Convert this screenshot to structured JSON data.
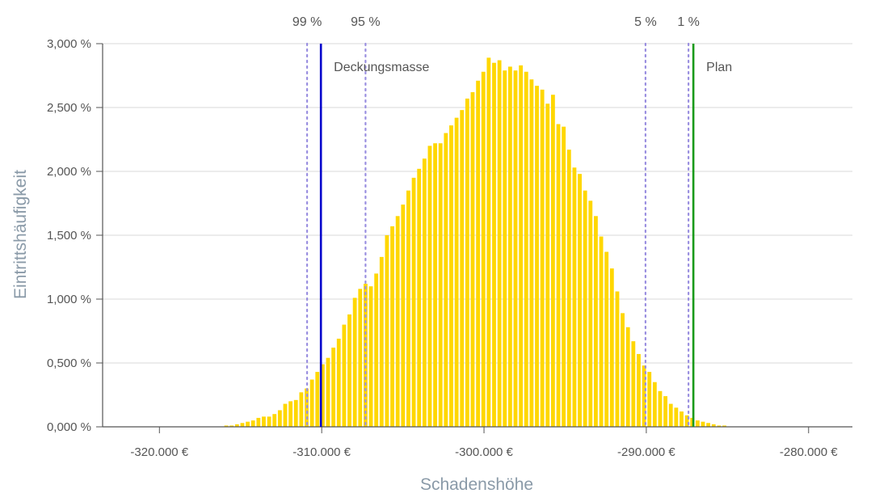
{
  "chart_data": {
    "type": "bar",
    "xlabel": "Schadenshöhe",
    "ylabel": "Eintrittshäufigkeit",
    "xlim": [
      -323500,
      -277300
    ],
    "ylim": [
      0,
      3
    ],
    "y_ticks": [
      0,
      0.5,
      1,
      1.5,
      2,
      2.5,
      3
    ],
    "y_tick_labels": [
      "0,000 %",
      "0,500 %",
      "1,000 %",
      "1,500 %",
      "2,000 %",
      "2,500 %",
      "3,000 %"
    ],
    "x_ticks": [
      -320000,
      -310000,
      -300000,
      -290000,
      -280000
    ],
    "x_tick_labels": [
      "-320.000 €",
      "-310.000 €",
      "-300.000 €",
      "-290.000 €",
      "-280.000 €"
    ],
    "grid": true,
    "bar_color": "#FFD700",
    "bar_start": -316000,
    "bar_width": 330,
    "bar_values": [
      0.01,
      0.01,
      0.02,
      0.03,
      0.04,
      0.05,
      0.07,
      0.08,
      0.08,
      0.1,
      0.13,
      0.18,
      0.2,
      0.21,
      0.27,
      0.3,
      0.37,
      0.43,
      0.49,
      0.54,
      0.62,
      0.69,
      0.8,
      0.88,
      1.01,
      1.08,
      1.12,
      1.1,
      1.2,
      1.33,
      1.5,
      1.57,
      1.65,
      1.74,
      1.85,
      1.95,
      2.02,
      2.1,
      2.2,
      2.22,
      2.22,
      2.3,
      2.36,
      2.42,
      2.48,
      2.57,
      2.62,
      2.71,
      2.78,
      2.89,
      2.85,
      2.87,
      2.79,
      2.82,
      2.79,
      2.83,
      2.78,
      2.72,
      2.67,
      2.64,
      2.53,
      2.6,
      2.37,
      2.35,
      2.17,
      2.03,
      1.98,
      1.85,
      1.77,
      1.65,
      1.49,
      1.37,
      1.24,
      1.06,
      0.89,
      0.78,
      0.67,
      0.57,
      0.48,
      0.43,
      0.35,
      0.28,
      0.24,
      0.18,
      0.15,
      0.12,
      0.09,
      0.07,
      0.05,
      0.04,
      0.03,
      0.02,
      0.01,
      0.01
    ],
    "percentile_lines": [
      {
        "label": "99 %",
        "x": -310900,
        "color": "#9a8fe0"
      },
      {
        "label": "95 %",
        "x": -307300,
        "color": "#9a8fe0"
      },
      {
        "label": "5 %",
        "x": -290050,
        "color": "#9a8fe0"
      },
      {
        "label": "1 %",
        "x": -287400,
        "color": "#9a8fe0"
      }
    ],
    "reference_lines": [
      {
        "label": "Deckungsmasse",
        "x": -310050,
        "color": "#0000cc"
      },
      {
        "label": "Plan",
        "x": -287100,
        "color": "#1a9a1a"
      }
    ]
  }
}
